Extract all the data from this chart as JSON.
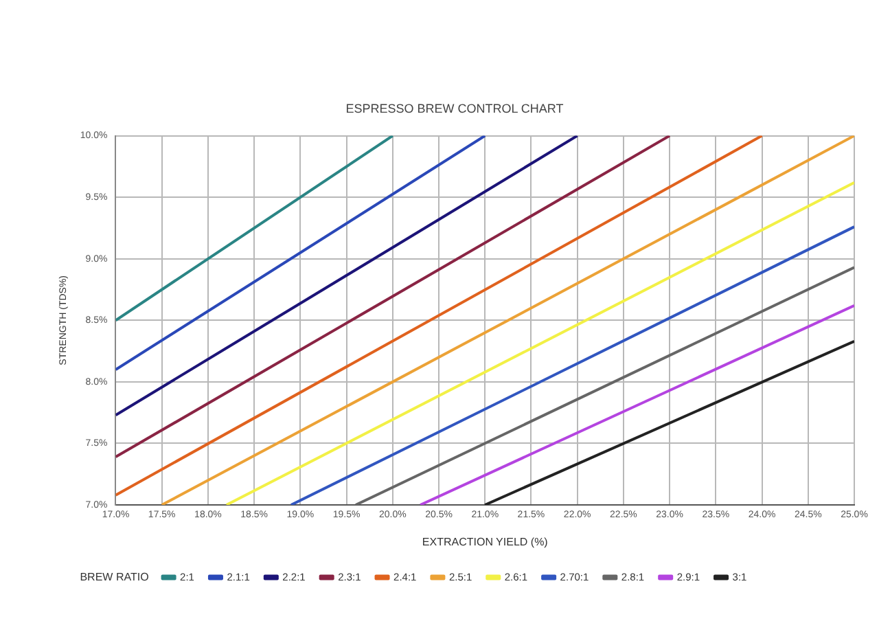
{
  "chart_data": {
    "type": "line",
    "title": "ESPRESSO BREW CONTROL CHART",
    "xlabel": "EXTRACTION YIELD (%)",
    "ylabel": "STRENGTH (TDS%)",
    "legend_title": "BREW RATIO",
    "xlim": [
      17,
      25
    ],
    "ylim": [
      7,
      10
    ],
    "xticks": [
      {
        "value": 17,
        "label": "17.0%"
      },
      {
        "value": 17.5,
        "label": "17.5%"
      },
      {
        "value": 18,
        "label": "18.0%"
      },
      {
        "value": 18.5,
        "label": "18.5%"
      },
      {
        "value": 19,
        "label": "19.0%"
      },
      {
        "value": 19.5,
        "label": "19.5%"
      },
      {
        "value": 20,
        "label": "20.0%"
      },
      {
        "value": 20.5,
        "label": "20.5%"
      },
      {
        "value": 21,
        "label": "21.0%"
      },
      {
        "value": 21.5,
        "label": "21.5%"
      },
      {
        "value": 22,
        "label": "22.0%"
      },
      {
        "value": 22.5,
        "label": "22.5%"
      },
      {
        "value": 23,
        "label": "23.0%"
      },
      {
        "value": 23.5,
        "label": "23.5%"
      },
      {
        "value": 24,
        "label": "24.0%"
      },
      {
        "value": 24.5,
        "label": "24.5%"
      },
      {
        "value": 25,
        "label": "25.0%"
      }
    ],
    "yticks": [
      {
        "value": 7,
        "label": "7.0%"
      },
      {
        "value": 7.5,
        "label": "7.5%"
      },
      {
        "value": 8,
        "label": "8.0%"
      },
      {
        "value": 8.5,
        "label": "8.5%"
      },
      {
        "value": 9,
        "label": "9.0%"
      },
      {
        "value": 9.5,
        "label": "9.5%"
      },
      {
        "value": 10,
        "label": "10.0%"
      }
    ],
    "grid": true,
    "legend": "bottom",
    "marker": "none",
    "line_style": "solid",
    "series": [
      {
        "name": "2:1",
        "color": "#2a8585",
        "x": [
          17,
          20
        ],
        "values": [
          8.5,
          10
        ]
      },
      {
        "name": "2.1:1",
        "color": "#2a48b8",
        "x": [
          17,
          21
        ],
        "values": [
          8.1,
          10
        ]
      },
      {
        "name": "2.2:1",
        "color": "#1c1478",
        "x": [
          17,
          22
        ],
        "values": [
          7.73,
          10
        ]
      },
      {
        "name": "2.3:1",
        "color": "#8a2444",
        "x": [
          17,
          23
        ],
        "values": [
          7.39,
          10
        ]
      },
      {
        "name": "2.4:1",
        "color": "#e0621e",
        "x": [
          17,
          24
        ],
        "values": [
          7.08,
          10
        ]
      },
      {
        "name": "2.5:1",
        "color": "#eca236",
        "x": [
          17.5,
          25
        ],
        "values": [
          7,
          10
        ]
      },
      {
        "name": "2.6:1",
        "color": "#f2f046",
        "x": [
          18.2,
          25
        ],
        "values": [
          7,
          9.62
        ]
      },
      {
        "name": "2.70:1",
        "color": "#3156c0",
        "x": [
          18.9,
          25
        ],
        "values": [
          7,
          9.26
        ]
      },
      {
        "name": "2.8:1",
        "color": "#666666",
        "x": [
          19.6,
          25
        ],
        "values": [
          7,
          8.93
        ]
      },
      {
        "name": "2.9:1",
        "color": "#b444e0",
        "x": [
          20.3,
          25
        ],
        "values": [
          7,
          8.62
        ]
      },
      {
        "name": "3:1",
        "color": "#222222",
        "x": [
          21,
          25
        ],
        "values": [
          7,
          8.33
        ]
      }
    ]
  }
}
